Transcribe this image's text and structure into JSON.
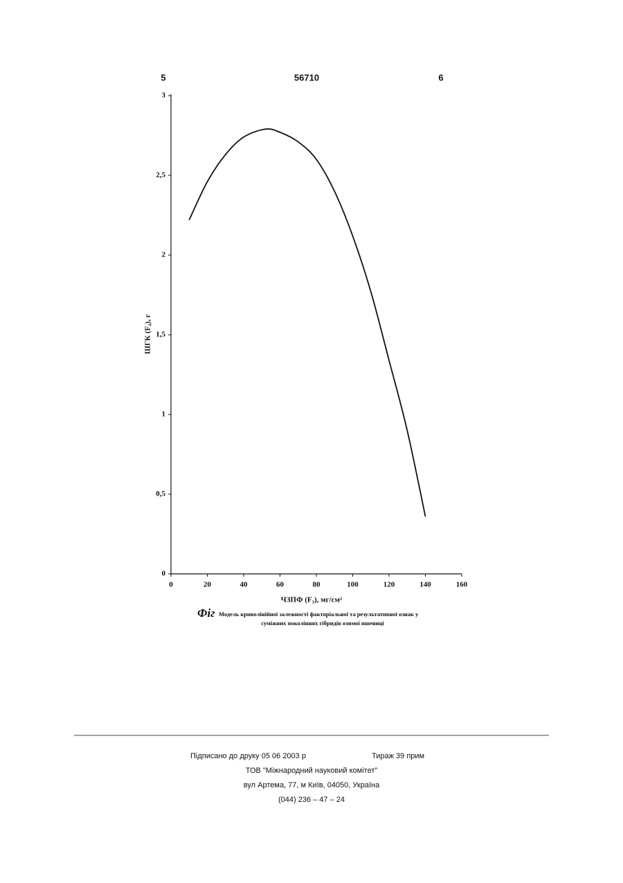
{
  "header": {
    "left": "5",
    "center": "56710",
    "right": "6"
  },
  "chart_data": {
    "type": "line",
    "xlabel": "ЧЗПФ (F₃), мг/см²",
    "ylabel": "ШГК (F₄), г",
    "x": [
      10,
      20,
      30,
      40,
      52,
      60,
      70,
      80,
      90,
      100,
      110,
      120,
      130,
      140
    ],
    "values": [
      2.22,
      2.46,
      2.63,
      2.74,
      2.79,
      2.77,
      2.71,
      2.6,
      2.4,
      2.12,
      1.77,
      1.34,
      0.9,
      0.36
    ],
    "color": "#111111",
    "xlim": [
      0,
      160
    ],
    "xticks": [
      0,
      20,
      40,
      60,
      80,
      100,
      120,
      140,
      160
    ],
    "ylim": [
      0,
      3
    ],
    "yticks": [
      0,
      {
        "value": 0.5,
        "label": "0,5"
      },
      1,
      {
        "value": 1.5,
        "label": "1,5"
      },
      2,
      {
        "value": 2.5,
        "label": "2,5"
      },
      3
    ]
  },
  "caption": {
    "label": "Фіг",
    "line1": "Модель криволінійної залежності факторіальної та результативної ознак у",
    "line2": "суміжних поколіннях гібридів озимої пшениці"
  },
  "footer": {
    "signed": "Підписано до друку 05 06 2003 р",
    "print_run": "Тираж 39 прим",
    "publisher": "ТОВ \"Міжнародний науковий комітет\"",
    "address": "вул  Артема, 77, м  Київ, 04050, Україна",
    "phone": "(044) 236 – 47 – 24"
  }
}
